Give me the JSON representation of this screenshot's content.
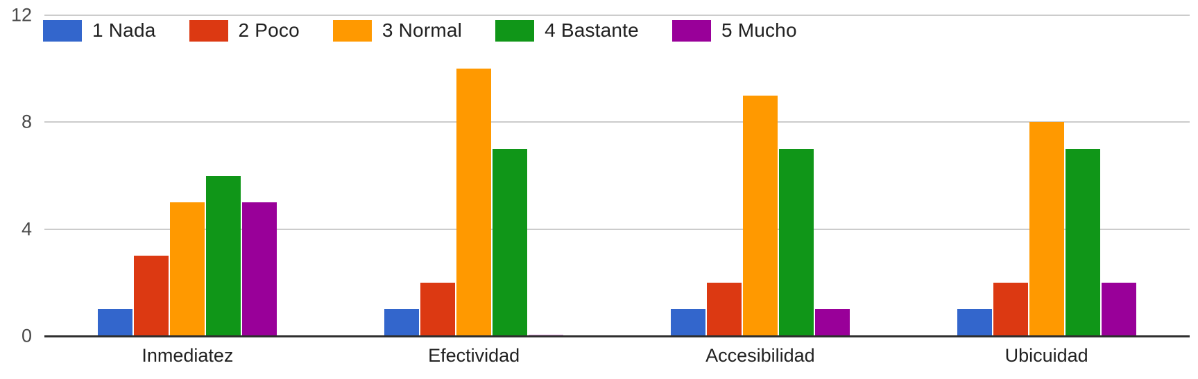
{
  "chart_data": {
    "type": "bar",
    "title": "",
    "categories": [
      "Inmediatez",
      "Efectividad",
      "Accesibilidad",
      "Ubicuidad"
    ],
    "series": [
      {
        "name": "1 Nada",
        "color": "#3366CC",
        "values": [
          1,
          1,
          1,
          1
        ]
      },
      {
        "name": "2 Poco",
        "color": "#DC3912",
        "values": [
          3,
          2,
          2,
          2
        ]
      },
      {
        "name": "3 Normal",
        "color": "#FF9900",
        "values": [
          5,
          10,
          9,
          8
        ]
      },
      {
        "name": "4 Bastante",
        "color": "#109618",
        "values": [
          6,
          7,
          7,
          7
        ]
      },
      {
        "name": "5 Mucho",
        "color": "#990099",
        "values": [
          5,
          0,
          1,
          2
        ]
      }
    ],
    "xlabel": "",
    "ylabel": "",
    "ylim": [
      0,
      12
    ],
    "yticks": [
      0,
      4,
      8,
      12
    ],
    "grid": true,
    "legend_position": "top-left"
  },
  "styles": {
    "background": "#ffffff",
    "gridline_color": "#cccccc",
    "baseline_color": "#2e2e2e",
    "axis_text_color": "#4a4a4a",
    "label_text_color": "#212121"
  }
}
